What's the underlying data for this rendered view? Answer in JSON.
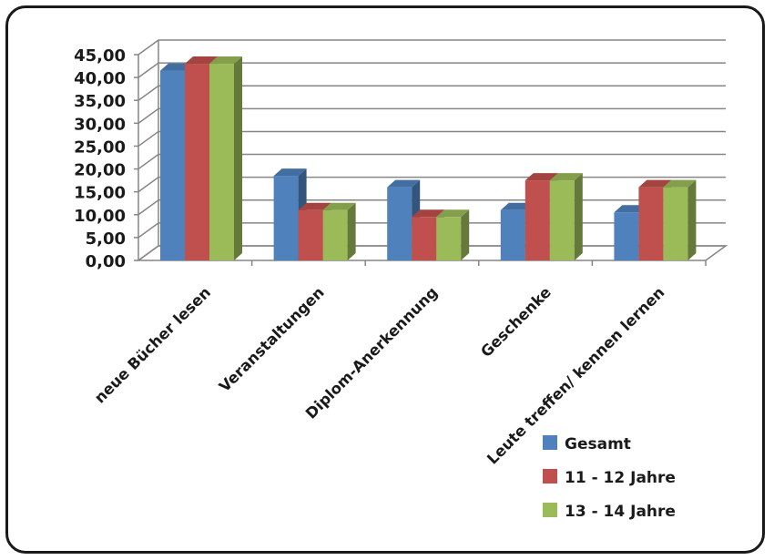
{
  "chart_data": {
    "type": "bar",
    "title": "",
    "xlabel": "",
    "ylabel": "",
    "ylim": [
      0,
      45
    ],
    "yticks": [
      "0,00",
      "5,00",
      "10,00",
      "15,00",
      "20,00",
      "25,00",
      "30,00",
      "35,00",
      "40,00",
      "45,00"
    ],
    "grid": true,
    "legend_position": "bottom-right",
    "categories": [
      "neue Bücher lesen",
      "Veranstaltungen",
      "Diplom-Anerkennung",
      "Geschenke",
      "Leute treffen/ kennen lernen"
    ],
    "series": [
      {
        "name": "Gesamt",
        "color": "#4f81bd",
        "values": [
          41.5,
          18.5,
          16.0,
          11.0,
          10.5
        ]
      },
      {
        "name": "11 - 12 Jahre",
        "color": "#c0504d",
        "values": [
          43.0,
          11.0,
          9.5,
          17.5,
          16.0
        ]
      },
      {
        "name": "13 - 14 Jahre",
        "color": "#9bbb59",
        "values": [
          43.0,
          11.0,
          9.5,
          17.5,
          16.0
        ]
      }
    ]
  }
}
